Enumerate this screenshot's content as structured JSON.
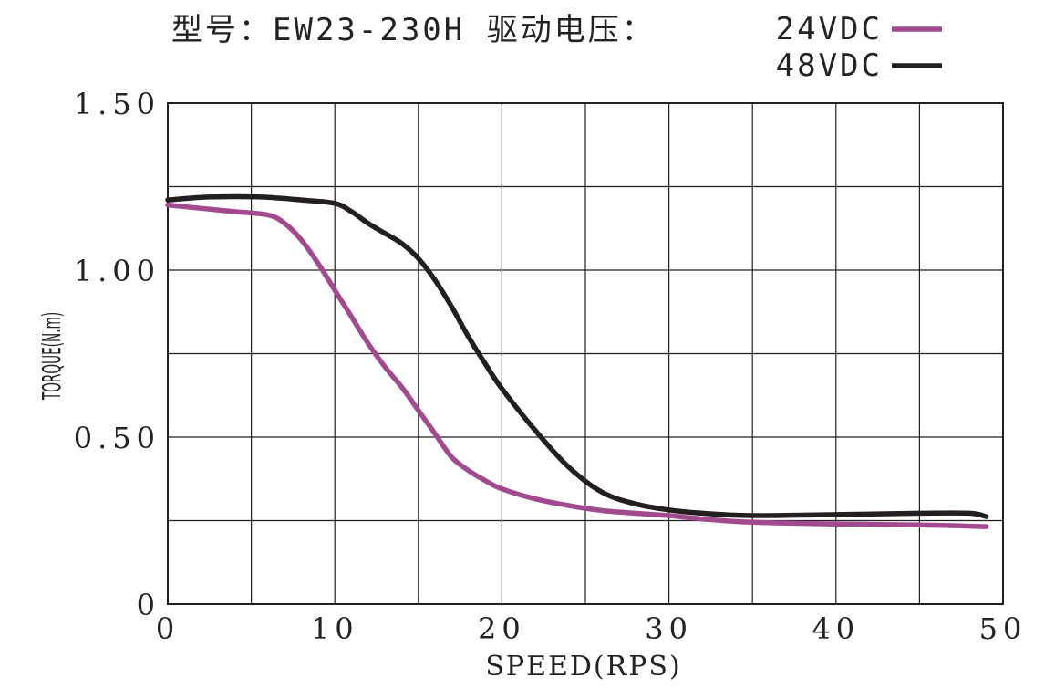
{
  "chart_data": {
    "type": "line",
    "title": "型号：EW23-230H   驱动电压：",
    "xlabel": "SPEED(RPS)",
    "ylabel": "TORQUE(N.m)",
    "xlim": [
      0,
      50
    ],
    "ylim": [
      0,
      1.5
    ],
    "x_ticks": [
      0,
      10,
      20,
      30,
      40,
      50
    ],
    "x_tick_labels": [
      "0",
      "10",
      "20",
      "30",
      "40",
      "50"
    ],
    "y_ticks": [
      0,
      0.5,
      1.0,
      1.5
    ],
    "y_tick_labels": [
      "0",
      "0.50",
      "1.00",
      "1.50"
    ],
    "grid": true,
    "legend_position": "top-right",
    "series": [
      {
        "name": "24VDC",
        "color": "#a24a8f",
        "x": [
          0,
          2,
          4,
          6,
          7,
          8,
          9,
          10,
          11,
          12,
          13,
          14,
          15,
          16,
          17,
          18,
          19,
          20,
          22,
          24,
          26,
          28,
          30,
          32,
          35,
          40,
          45,
          49
        ],
        "y": [
          1.195,
          1.185,
          1.175,
          1.165,
          1.14,
          1.09,
          1.02,
          0.94,
          0.86,
          0.78,
          0.71,
          0.65,
          0.58,
          0.51,
          0.44,
          0.4,
          0.37,
          0.345,
          0.315,
          0.295,
          0.28,
          0.272,
          0.265,
          0.255,
          0.245,
          0.24,
          0.237,
          0.232
        ]
      },
      {
        "name": "48VDC",
        "color": "#231f20",
        "x": [
          0,
          2,
          4,
          6,
          8,
          10,
          11,
          12,
          13,
          14,
          15,
          16,
          17,
          18,
          19,
          20,
          22,
          24,
          26,
          28,
          30,
          32,
          35,
          40,
          45,
          48,
          49
        ],
        "y": [
          1.21,
          1.218,
          1.22,
          1.218,
          1.21,
          1.2,
          1.175,
          1.14,
          1.11,
          1.08,
          1.035,
          0.97,
          0.89,
          0.8,
          0.72,
          0.645,
          0.52,
          0.41,
          0.335,
          0.3,
          0.282,
          0.272,
          0.265,
          0.268,
          0.272,
          0.272,
          0.262
        ]
      }
    ]
  }
}
